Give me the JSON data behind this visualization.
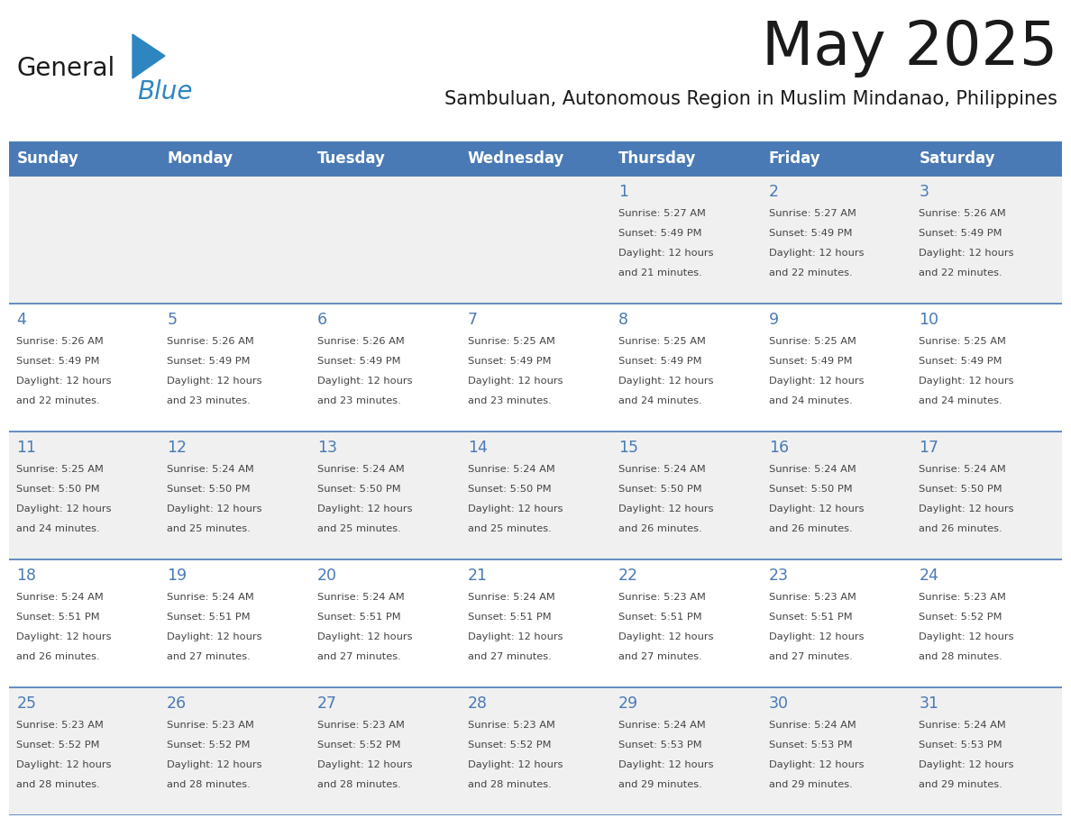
{
  "title": "May 2025",
  "subtitle": "Sambuluan, Autonomous Region in Muslim Mindanao, Philippines",
  "days_of_week": [
    "Sunday",
    "Monday",
    "Tuesday",
    "Wednesday",
    "Thursday",
    "Friday",
    "Saturday"
  ],
  "header_bg": "#4a7ab5",
  "header_text_color": "#ffffff",
  "cell_bg_even": "#f0f0f0",
  "cell_bg_odd": "#ffffff",
  "cell_border_color": "#4a7ab5",
  "day_number_color": "#4a7ab5",
  "cell_text_color": "#444444",
  "title_color": "#1a1a1a",
  "subtitle_color": "#1a1a1a",
  "logo_general_color": "#1a1a1a",
  "logo_blue_color": "#2e86c1",
  "calendar": [
    [
      null,
      null,
      null,
      null,
      {
        "day": 1,
        "sunrise": "5:27 AM",
        "sunset": "5:49 PM",
        "daylight_suffix": "21 minutes."
      },
      {
        "day": 2,
        "sunrise": "5:27 AM",
        "sunset": "5:49 PM",
        "daylight_suffix": "22 minutes."
      },
      {
        "day": 3,
        "sunrise": "5:26 AM",
        "sunset": "5:49 PM",
        "daylight_suffix": "22 minutes."
      }
    ],
    [
      {
        "day": 4,
        "sunrise": "5:26 AM",
        "sunset": "5:49 PM",
        "daylight_suffix": "22 minutes."
      },
      {
        "day": 5,
        "sunrise": "5:26 AM",
        "sunset": "5:49 PM",
        "daylight_suffix": "23 minutes."
      },
      {
        "day": 6,
        "sunrise": "5:26 AM",
        "sunset": "5:49 PM",
        "daylight_suffix": "23 minutes."
      },
      {
        "day": 7,
        "sunrise": "5:25 AM",
        "sunset": "5:49 PM",
        "daylight_suffix": "23 minutes."
      },
      {
        "day": 8,
        "sunrise": "5:25 AM",
        "sunset": "5:49 PM",
        "daylight_suffix": "24 minutes."
      },
      {
        "day": 9,
        "sunrise": "5:25 AM",
        "sunset": "5:49 PM",
        "daylight_suffix": "24 minutes."
      },
      {
        "day": 10,
        "sunrise": "5:25 AM",
        "sunset": "5:49 PM",
        "daylight_suffix": "24 minutes."
      }
    ],
    [
      {
        "day": 11,
        "sunrise": "5:25 AM",
        "sunset": "5:50 PM",
        "daylight_suffix": "24 minutes."
      },
      {
        "day": 12,
        "sunrise": "5:24 AM",
        "sunset": "5:50 PM",
        "daylight_suffix": "25 minutes."
      },
      {
        "day": 13,
        "sunrise": "5:24 AM",
        "sunset": "5:50 PM",
        "daylight_suffix": "25 minutes."
      },
      {
        "day": 14,
        "sunrise": "5:24 AM",
        "sunset": "5:50 PM",
        "daylight_suffix": "25 minutes."
      },
      {
        "day": 15,
        "sunrise": "5:24 AM",
        "sunset": "5:50 PM",
        "daylight_suffix": "26 minutes."
      },
      {
        "day": 16,
        "sunrise": "5:24 AM",
        "sunset": "5:50 PM",
        "daylight_suffix": "26 minutes."
      },
      {
        "day": 17,
        "sunrise": "5:24 AM",
        "sunset": "5:50 PM",
        "daylight_suffix": "26 minutes."
      }
    ],
    [
      {
        "day": 18,
        "sunrise": "5:24 AM",
        "sunset": "5:51 PM",
        "daylight_suffix": "26 minutes."
      },
      {
        "day": 19,
        "sunrise": "5:24 AM",
        "sunset": "5:51 PM",
        "daylight_suffix": "27 minutes."
      },
      {
        "day": 20,
        "sunrise": "5:24 AM",
        "sunset": "5:51 PM",
        "daylight_suffix": "27 minutes."
      },
      {
        "day": 21,
        "sunrise": "5:24 AM",
        "sunset": "5:51 PM",
        "daylight_suffix": "27 minutes."
      },
      {
        "day": 22,
        "sunrise": "5:23 AM",
        "sunset": "5:51 PM",
        "daylight_suffix": "27 minutes."
      },
      {
        "day": 23,
        "sunrise": "5:23 AM",
        "sunset": "5:51 PM",
        "daylight_suffix": "27 minutes."
      },
      {
        "day": 24,
        "sunrise": "5:23 AM",
        "sunset": "5:52 PM",
        "daylight_suffix": "28 minutes."
      }
    ],
    [
      {
        "day": 25,
        "sunrise": "5:23 AM",
        "sunset": "5:52 PM",
        "daylight_suffix": "28 minutes."
      },
      {
        "day": 26,
        "sunrise": "5:23 AM",
        "sunset": "5:52 PM",
        "daylight_suffix": "28 minutes."
      },
      {
        "day": 27,
        "sunrise": "5:23 AM",
        "sunset": "5:52 PM",
        "daylight_suffix": "28 minutes."
      },
      {
        "day": 28,
        "sunrise": "5:23 AM",
        "sunset": "5:52 PM",
        "daylight_suffix": "28 minutes."
      },
      {
        "day": 29,
        "sunrise": "5:24 AM",
        "sunset": "5:53 PM",
        "daylight_suffix": "29 minutes."
      },
      {
        "day": 30,
        "sunrise": "5:24 AM",
        "sunset": "5:53 PM",
        "daylight_suffix": "29 minutes."
      },
      {
        "day": 31,
        "sunrise": "5:24 AM",
        "sunset": "5:53 PM",
        "daylight_suffix": "29 minutes."
      }
    ]
  ]
}
